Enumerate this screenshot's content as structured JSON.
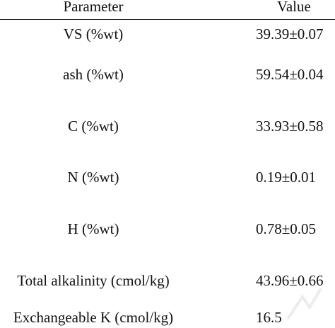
{
  "table": {
    "headers": {
      "parameter": "Parameter",
      "value": "Value"
    },
    "rows": [
      {
        "parameter": "VS (%wt)",
        "value": "39.39±0.07"
      },
      {
        "parameter": "ash (%wt)",
        "value": "59.54±0.04"
      },
      {
        "parameter": "C (%wt)",
        "value": "33.93±0.58"
      },
      {
        "parameter": "N (%wt)",
        "value": "0.19±0.01"
      },
      {
        "parameter": "H (%wt)",
        "value": "0.78±0.05"
      },
      {
        "parameter": "Total alkalinity (cmol/kg)",
        "value": "43.96±0.66"
      },
      {
        "parameter": "Exchangeable K (cmol/kg)",
        "value": "16.5"
      }
    ]
  }
}
